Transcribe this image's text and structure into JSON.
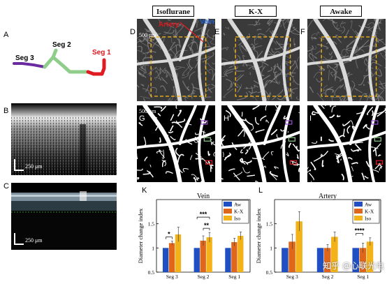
{
  "panel_labels": {
    "A": "A",
    "B": "B",
    "C": "C",
    "D": "D",
    "E": "E",
    "F": "F",
    "G": "G",
    "H": "H",
    "I": "I",
    "K": "K",
    "L": "L"
  },
  "conditions": [
    "Isoflurane",
    "K-X",
    "Awake"
  ],
  "segment_diagram": {
    "seg3": "Seg 3",
    "seg2": "Seg 2",
    "seg1": "Seg 1",
    "colors": {
      "seg3": "#6a2aa0",
      "seg2": "#8fce8a",
      "seg1": "#e01b22"
    }
  },
  "scale_bars": {
    "oct": "250 μm",
    "angio": "500 μm"
  },
  "annotations": {
    "artery": "Artery",
    "vein": "Vein"
  },
  "watermark": "知乎 @心联光电",
  "chart_data": [
    {
      "type": "bar",
      "title": "Vein",
      "ylabel": "Diameter change index",
      "categories": [
        "Seg 3",
        "Seg 2",
        "Seg 1"
      ],
      "ylim": [
        0.5,
        2.0
      ],
      "yticks": [
        "0.5",
        "1",
        "1.5"
      ],
      "legend_position": "top-right",
      "series": [
        {
          "name": "Aw",
          "color": "#1f4fc2",
          "values": [
            1.0,
            1.0,
            1.0
          ],
          "err": [
            0,
            0,
            0
          ]
        },
        {
          "name": "K-X",
          "color": "#e0661a",
          "values": [
            1.1,
            1.15,
            1.12
          ],
          "err": [
            0.04,
            0.1,
            0.08
          ]
        },
        {
          "name": "Iso",
          "color": "#f2b218",
          "values": [
            1.28,
            1.22,
            1.25
          ],
          "err": [
            0.15,
            0.1,
            0.08
          ]
        }
      ],
      "significance": [
        "*",
        "***",
        "**"
      ]
    },
    {
      "type": "bar",
      "title": "Artery",
      "ylabel": "Diameter change index",
      "categories": [
        "Seg 3",
        "Seg 2",
        "Seg 1"
      ],
      "ylim": [
        0.5,
        2.0
      ],
      "yticks": [
        "0.5",
        "1",
        "1.5"
      ],
      "legend_position": "top-right",
      "series": [
        {
          "name": "Aw",
          "color": "#1f4fc2",
          "values": [
            1.0,
            1.0,
            1.0
          ],
          "err": [
            0,
            0,
            0
          ]
        },
        {
          "name": "K-X",
          "color": "#e0661a",
          "values": [
            1.13,
            1.0,
            1.0
          ],
          "err": [
            0.15,
            0.07,
            0.1
          ]
        },
        {
          "name": "Iso",
          "color": "#f2b218",
          "values": [
            1.55,
            1.23,
            1.13
          ],
          "err": [
            0.2,
            0.1,
            0.08
          ]
        }
      ],
      "significance": [
        "*****",
        "****"
      ]
    }
  ]
}
